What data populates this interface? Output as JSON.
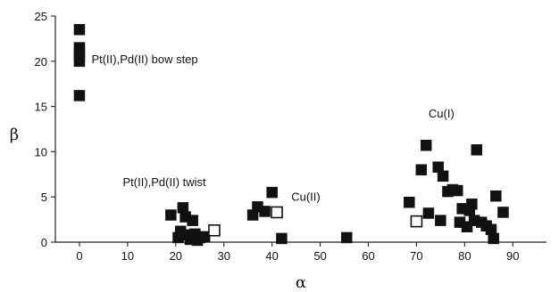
{
  "chart_data": {
    "type": "scatter",
    "title": "",
    "xlabel": "α",
    "ylabel": "β",
    "xlim": [
      -5,
      97
    ],
    "ylim": [
      0,
      25
    ],
    "xticks": [
      0,
      10,
      20,
      30,
      40,
      50,
      60,
      70,
      80,
      90
    ],
    "yticks": [
      0,
      5,
      10,
      15,
      20,
      25
    ],
    "grid": false,
    "legend": "none",
    "colors": {
      "marker": "#111111",
      "axis": "#222222"
    },
    "series": [
      {
        "marker": "filled-square",
        "points": [
          [
            0,
            23.5
          ],
          [
            0,
            21.5
          ],
          [
            0,
            21.0
          ],
          [
            0,
            20.5
          ],
          [
            0,
            20.0
          ],
          [
            0,
            16.2
          ],
          [
            19,
            3.0
          ],
          [
            20.5,
            0.5
          ],
          [
            21,
            1.2
          ],
          [
            21.5,
            3.8
          ],
          [
            22,
            0.8
          ],
          [
            22,
            2.8
          ],
          [
            23,
            0.3
          ],
          [
            23.5,
            2.4
          ],
          [
            24,
            0.9
          ],
          [
            24.5,
            0.2
          ],
          [
            25,
            0.5
          ],
          [
            26,
            0.6
          ],
          [
            36,
            3.0
          ],
          [
            37,
            3.9
          ],
          [
            38.5,
            3.4
          ],
          [
            40,
            5.5
          ],
          [
            42,
            0.4
          ],
          [
            55.5,
            0.5
          ],
          [
            68.5,
            4.4
          ],
          [
            71,
            8.0
          ],
          [
            72,
            10.7
          ],
          [
            72.5,
            3.2
          ],
          [
            74.5,
            8.3
          ],
          [
            75,
            2.4
          ],
          [
            75.5,
            7.3
          ],
          [
            76.5,
            5.6
          ],
          [
            77.5,
            5.8
          ],
          [
            78.5,
            5.7
          ],
          [
            79,
            2.2
          ],
          [
            79.5,
            3.7
          ],
          [
            80.5,
            1.7
          ],
          [
            81,
            3.5
          ],
          [
            81.5,
            4.2
          ],
          [
            82,
            2.4
          ],
          [
            82.5,
            10.2
          ],
          [
            83.5,
            2.2
          ],
          [
            84.5,
            1.8
          ],
          [
            85.5,
            1.4
          ],
          [
            86,
            0.4
          ],
          [
            86.5,
            5.1
          ],
          [
            88,
            3.3
          ]
        ]
      },
      {
        "marker": "open-square",
        "points": [
          [
            28,
            1.3
          ],
          [
            41,
            3.3
          ],
          [
            70,
            2.3
          ]
        ]
      }
    ],
    "annotations": [
      {
        "text": "Pt(II),Pd(II) bow step",
        "x": 2.5,
        "y": 19.8
      },
      {
        "text": "Pt(II),Pd(II) twist",
        "x": 9,
        "y": 6.2
      },
      {
        "text": "Cu(II)",
        "x": 44,
        "y": 4.6
      },
      {
        "text": "Cu(I)",
        "x": 72.5,
        "y": 13.8
      }
    ]
  }
}
